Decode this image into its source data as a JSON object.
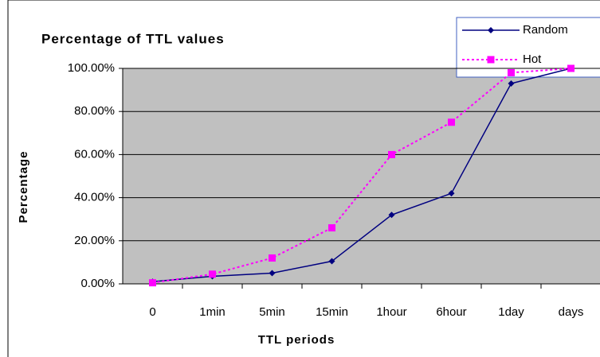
{
  "chart_data": {
    "type": "line",
    "title": "Percentage of TTL values",
    "x_label": "TTL periods",
    "y_label": "Percentage",
    "categories": [
      "0",
      "1min",
      "5min",
      "15min",
      "1hour",
      "6hour",
      "1day",
      "days"
    ],
    "series": [
      {
        "name": "Random",
        "color": "#000080",
        "values": [
          1,
          3.5,
          5,
          10.5,
          32,
          42,
          93,
          100
        ]
      },
      {
        "name": "Hot",
        "color": "#ff00ff",
        "values": [
          0.5,
          4.5,
          12,
          26,
          60,
          75,
          98,
          100
        ]
      }
    ],
    "ylim": [
      0,
      100
    ],
    "yticks": [
      {
        "value": 0,
        "label": "0.00%"
      },
      {
        "value": 20,
        "label": "20.00%"
      },
      {
        "value": 40,
        "label": "40.00%"
      },
      {
        "value": 60,
        "label": "60.00%"
      },
      {
        "value": 80,
        "label": "80.00%"
      },
      {
        "value": 100,
        "label": "100.00%"
      }
    ],
    "grid": true,
    "legend": "top-right"
  }
}
